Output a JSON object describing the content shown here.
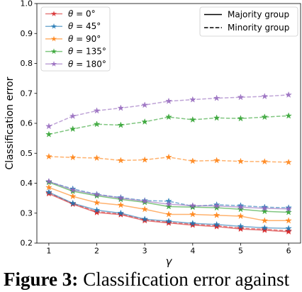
{
  "chart_data": {
    "type": "line",
    "title": "",
    "xlabel": "γ",
    "ylabel": "Classification error",
    "xlim": [
      0.75,
      6.25
    ],
    "ylim": [
      0.2,
      1.0
    ],
    "xticks": [
      1,
      2,
      3,
      4,
      5,
      6
    ],
    "yticks": [
      0.2,
      0.3,
      0.4,
      0.5,
      0.6,
      0.7,
      0.8,
      0.9,
      1.0
    ],
    "grid": false,
    "marker": "star",
    "x": [
      1,
      1.5,
      2,
      2.5,
      3,
      3.5,
      4,
      4.5,
      5,
      5.5,
      6
    ],
    "theta_legend": {
      "placement": "upper left"
    },
    "group_legend": {
      "placement": "upper right",
      "entries": [
        {
          "label": "Majority group",
          "linestyle": "solid",
          "color": "#000000"
        },
        {
          "label": "Minority group",
          "linestyle": "dashed",
          "color": "#000000"
        }
      ]
    },
    "series": [
      {
        "name": "θ = 0°",
        "color": "#d62728",
        "majority": [
          0.365,
          0.33,
          0.302,
          0.295,
          0.275,
          0.267,
          0.26,
          0.255,
          0.247,
          0.243,
          0.238
        ],
        "minority": [
          0.368,
          0.332,
          0.305,
          0.297,
          0.278,
          0.269,
          0.263,
          0.258,
          0.25,
          0.246,
          0.241
        ]
      },
      {
        "name": "θ = 45°",
        "color": "#1f77b4",
        "majority": [
          0.37,
          0.333,
          0.31,
          0.3,
          0.28,
          0.273,
          0.266,
          0.262,
          0.256,
          0.251,
          0.249
        ],
        "minority": [
          0.405,
          0.381,
          0.363,
          0.352,
          0.342,
          0.34,
          0.323,
          0.328,
          0.325,
          0.32,
          0.318
        ]
      },
      {
        "name": "θ = 90°",
        "color": "#ff7f0e",
        "majority": [
          0.386,
          0.356,
          0.335,
          0.327,
          0.313,
          0.296,
          0.296,
          0.293,
          0.29,
          0.275,
          0.275
        ],
        "minority": [
          0.489,
          0.486,
          0.484,
          0.476,
          0.478,
          0.487,
          0.474,
          0.476,
          0.473,
          0.472,
          0.47
        ]
      },
      {
        "name": "θ = 135°",
        "color": "#2ca02c",
        "majority": [
          0.403,
          0.373,
          0.358,
          0.346,
          0.336,
          0.322,
          0.32,
          0.318,
          0.313,
          0.306,
          0.303
        ],
        "minority": [
          0.563,
          0.581,
          0.597,
          0.594,
          0.605,
          0.621,
          0.612,
          0.618,
          0.616,
          0.621,
          0.625
        ]
      },
      {
        "name": "θ = 180°",
        "color": "#9467bd",
        "majority": [
          0.406,
          0.377,
          0.362,
          0.35,
          0.34,
          0.33,
          0.325,
          0.324,
          0.32,
          0.316,
          0.314
        ],
        "minority": [
          0.59,
          0.624,
          0.642,
          0.651,
          0.661,
          0.674,
          0.679,
          0.684,
          0.687,
          0.69,
          0.695
        ]
      }
    ]
  },
  "caption": {
    "label": "Figure 3:",
    "text": "Classification error against"
  }
}
